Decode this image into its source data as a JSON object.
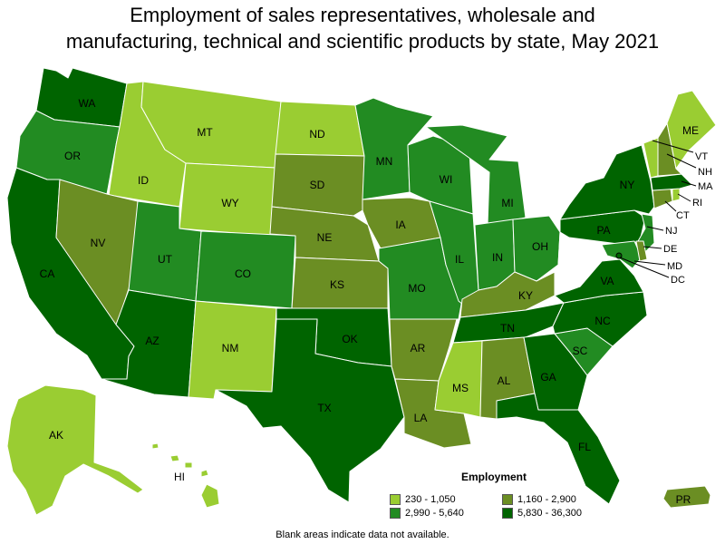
{
  "title_line1": "Employment of sales representatives, wholesale and",
  "title_line2": "manufacturing, technical and scientific products by state, May 2021",
  "legend": {
    "title": "Employment",
    "items": [
      {
        "label": "230 - 1,050",
        "color": "#9acd32"
      },
      {
        "label": "1,160 - 2,900",
        "color": "#6b8e23"
      },
      {
        "label": "2,990 - 5,640",
        "color": "#228b22"
      },
      {
        "label": "5,830 - 36,300",
        "color": "#006400"
      }
    ]
  },
  "footnote": "Blank areas indicate data not available.",
  "colors": {
    "c1": "#9acd32",
    "c2": "#6b8e23",
    "c3": "#228b22",
    "c4": "#006400"
  },
  "states": {
    "WA": {
      "label": "WA",
      "bin": 4
    },
    "OR": {
      "label": "OR",
      "bin": 3
    },
    "CA": {
      "label": "CA",
      "bin": 4
    },
    "ID": {
      "label": "ID",
      "bin": 1
    },
    "NV": {
      "label": "NV",
      "bin": 2
    },
    "MT": {
      "label": "MT",
      "bin": 1
    },
    "WY": {
      "label": "WY",
      "bin": 1
    },
    "UT": {
      "label": "UT",
      "bin": 3
    },
    "AZ": {
      "label": "AZ",
      "bin": 4
    },
    "CO": {
      "label": "CO",
      "bin": 3
    },
    "NM": {
      "label": "NM",
      "bin": 1
    },
    "ND": {
      "label": "ND",
      "bin": 1
    },
    "SD": {
      "label": "SD",
      "bin": 2
    },
    "NE": {
      "label": "NE",
      "bin": 2
    },
    "KS": {
      "label": "KS",
      "bin": 2
    },
    "OK": {
      "label": "OK",
      "bin": 4
    },
    "TX": {
      "label": "TX",
      "bin": 4
    },
    "MN": {
      "label": "MN",
      "bin": 3
    },
    "IA": {
      "label": "IA",
      "bin": 2
    },
    "MO": {
      "label": "MO",
      "bin": 3
    },
    "AR": {
      "label": "AR",
      "bin": 2
    },
    "LA": {
      "label": "LA",
      "bin": 2
    },
    "WI": {
      "label": "WI",
      "bin": 3
    },
    "IL": {
      "label": "IL",
      "bin": 3
    },
    "MI": {
      "label": "MI",
      "bin": 3
    },
    "IN": {
      "label": "IN",
      "bin": 3
    },
    "OH": {
      "label": "OH",
      "bin": 3
    },
    "KY": {
      "label": "KY",
      "bin": 2
    },
    "TN": {
      "label": "TN",
      "bin": 4
    },
    "MS": {
      "label": "MS",
      "bin": 1
    },
    "AL": {
      "label": "AL",
      "bin": 2
    },
    "GA": {
      "label": "GA",
      "bin": 4
    },
    "FL": {
      "label": "FL",
      "bin": 4
    },
    "SC": {
      "label": "SC",
      "bin": 3
    },
    "NC": {
      "label": "NC",
      "bin": 4
    },
    "VA": {
      "label": "VA",
      "bin": 4
    },
    "WV": {
      "label": "",
      "bin": 0
    },
    "PA": {
      "label": "PA",
      "bin": 4
    },
    "NY": {
      "label": "NY",
      "bin": 4
    },
    "NJ": {
      "label": "NJ",
      "bin": 3
    },
    "DE": {
      "label": "DE",
      "bin": 2
    },
    "MD": {
      "label": "MD",
      "bin": 3
    },
    "DC": {
      "label": "DC",
      "bin": 4
    },
    "CT": {
      "label": "CT",
      "bin": 2
    },
    "RI": {
      "label": "RI",
      "bin": 1
    },
    "MA": {
      "label": "MA",
      "bin": 4
    },
    "VT": {
      "label": "VT",
      "bin": 1
    },
    "NH": {
      "label": "NH",
      "bin": 2
    },
    "ME": {
      "label": "ME",
      "bin": 1
    },
    "AK": {
      "label": "AK",
      "bin": 1
    },
    "HI": {
      "label": "HI",
      "bin": 1
    },
    "PR": {
      "label": "PR",
      "bin": 2
    }
  }
}
